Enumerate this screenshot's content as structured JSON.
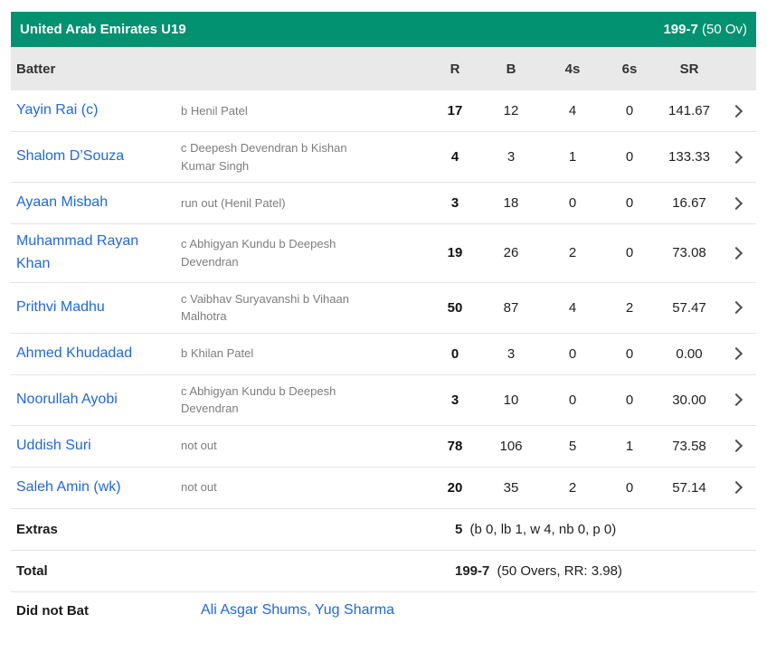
{
  "team_header": {
    "team": "United Arab Emirates U19",
    "score": "199-7",
    "overs": "(50 Ov)"
  },
  "columns": {
    "batter": "Batter",
    "runs": "R",
    "balls": "B",
    "fours": "4s",
    "sixes": "6s",
    "strike_rate": "SR"
  },
  "batters": [
    {
      "name": "Yayin Rai (c)",
      "dismissal": "b Henil Patel",
      "r": "17",
      "b": "12",
      "fours": "4",
      "sixes": "0",
      "sr": "141.67"
    },
    {
      "name": "Shalom D’Souza",
      "dismissal": "c Deepesh Devendran b Kishan Kumar Singh",
      "r": "4",
      "b": "3",
      "fours": "1",
      "sixes": "0",
      "sr": "133.33"
    },
    {
      "name": "Ayaan Misbah",
      "dismissal": "run out (Henil Patel)",
      "r": "3",
      "b": "18",
      "fours": "0",
      "sixes": "0",
      "sr": "16.67"
    },
    {
      "name": "Muhammad Rayan Khan",
      "dismissal": "c Abhigyan Kundu b Deepesh Devendran",
      "r": "19",
      "b": "26",
      "fours": "2",
      "sixes": "0",
      "sr": "73.08"
    },
    {
      "name": "Prithvi Madhu",
      "dismissal": "c Vaibhav Suryavanshi b Vihaan Malhotra",
      "r": "50",
      "b": "87",
      "fours": "4",
      "sixes": "2",
      "sr": "57.47"
    },
    {
      "name": "Ahmed Khudadad",
      "dismissal": "b Khilan Patel",
      "r": "0",
      "b": "3",
      "fours": "0",
      "sixes": "0",
      "sr": "0.00"
    },
    {
      "name": "Noorullah Ayobi",
      "dismissal": "c Abhigyan Kundu b Deepesh Devendran",
      "r": "3",
      "b": "10",
      "fours": "0",
      "sixes": "0",
      "sr": "30.00"
    },
    {
      "name": "Uddish Suri",
      "dismissal": "not out",
      "r": "78",
      "b": "106",
      "fours": "5",
      "sixes": "1",
      "sr": "73.58"
    },
    {
      "name": "Saleh Amin (wk)",
      "dismissal": "not out",
      "r": "20",
      "b": "35",
      "fours": "2",
      "sixes": "0",
      "sr": "57.14"
    }
  ],
  "extras": {
    "label": "Extras",
    "runs": "5",
    "detail": "(b 0, lb 1, w 4, nb 0, p 0)"
  },
  "total": {
    "label": "Total",
    "score": "199-7",
    "detail": "(50 Overs, RR: 3.98)"
  },
  "did_not_bat": {
    "label": "Did not Bat",
    "players": "Ali Asgar Shums, Yug Sharma"
  },
  "colors": {
    "header_green": "#029171",
    "link_blue": "#2269d3",
    "header_row_gray": "#e9e9e9"
  }
}
